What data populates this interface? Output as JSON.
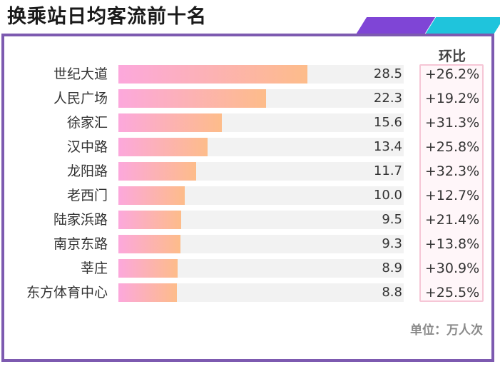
{
  "title": "换乘站日均客流前十名",
  "yoy_header": "环比",
  "unit_note": "单位：万人次",
  "colors": {
    "frame": "#7d5ab0",
    "deco_purple": "#7f45d6",
    "deco_cyan": "#1fc4dc",
    "bar_start": "#fca8dc",
    "bar_end": "#fdbc8a",
    "track": "#f2f2f2",
    "yoy_border": "#f6c6d6"
  },
  "chart_data": {
    "type": "bar",
    "orientation": "horizontal",
    "title": "换乘站日均客流前十名",
    "categories": [
      "世纪大道",
      "人民广场",
      "徐家汇",
      "汉中路",
      "龙阳路",
      "老西门",
      "陆家浜路",
      "南京东路",
      "莘庄",
      "东方体育中心"
    ],
    "values": [
      28.5,
      22.3,
      15.6,
      13.4,
      11.7,
      10.0,
      9.5,
      9.3,
      8.9,
      8.8
    ],
    "value_labels": [
      "28.5",
      "22.3",
      "15.6",
      "13.4",
      "11.7",
      "10.0",
      "9.5",
      "9.3",
      "8.9",
      "8.8"
    ],
    "yoy_labels": [
      "+26.2%",
      "+19.2%",
      "+31.3%",
      "+25.8%",
      "+32.3%",
      "+12.7%",
      "+21.4%",
      "+13.8%",
      "+30.9%",
      "+25.5%"
    ],
    "xlim": [
      0,
      43
    ],
    "unit": "单位：万人次"
  }
}
